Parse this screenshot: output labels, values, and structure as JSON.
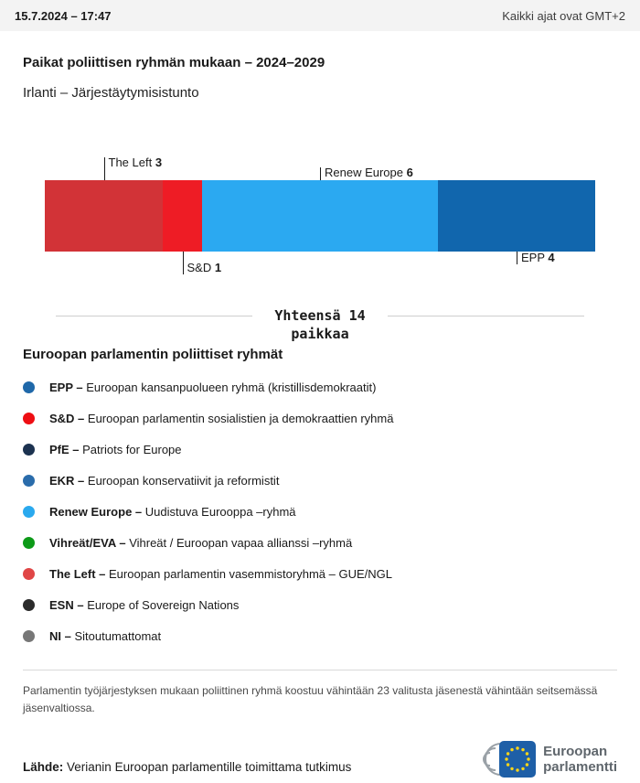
{
  "header": {
    "datetime": "15.7.2024 – 17:47",
    "timezone_note": "Kaikki ajat ovat GMT+2"
  },
  "title": "Paikat poliittisen ryhmän mukaan – 2024–2029",
  "subtitle": "Irlanti – Järjestäytymisistunto",
  "chart_data": {
    "type": "bar",
    "stacked": true,
    "title": "Paikat poliittisen ryhmän mukaan – 2024–2029",
    "region": "Irlanti – Järjestäytymisistunto",
    "total_seats": 14,
    "total_line1": "Yhteensä 14",
    "total_line2": "paikkaa",
    "categories": [
      "The Left",
      "S&D",
      "Renew Europe",
      "EPP"
    ],
    "values": [
      3,
      1,
      6,
      4
    ],
    "segments": [
      {
        "name": "The Left",
        "value": 3,
        "color": "#d23337",
        "label_side": "top",
        "tick": 25
      },
      {
        "name": "S&D",
        "value": 1,
        "color": "#ee1c25",
        "label_side": "bottom",
        "tick": 25
      },
      {
        "name": "Renew Europe",
        "value": 6,
        "color": "#2ba9f1",
        "label_side": "top",
        "tick": 14
      },
      {
        "name": "EPP",
        "value": 4,
        "color": "#1166ad",
        "label_side": "bottom",
        "tick": 14
      }
    ]
  },
  "legend": {
    "heading": "Euroopan parlamentin poliittiset ryhmät",
    "items": [
      {
        "label": "EPP –",
        "desc": "Euroopan kansanpuolueen ryhmä (kristillisdemokraatit)",
        "color": "#1f68a9"
      },
      {
        "label": "S&D –",
        "desc": "Euroopan parlamentin sosialistien ja demokraattien ryhmä",
        "color": "#ee0e13"
      },
      {
        "label": "PfE –",
        "desc": "Patriots for Europe",
        "color": "#1c3250"
      },
      {
        "label": "EKR –",
        "desc": "Euroopan konservatiivit ja reformistit",
        "color": "#2a6cab"
      },
      {
        "label": "Renew Europe –",
        "desc": "Uudistuva Eurooppa –ryhmä",
        "color": "#2aa9ee"
      },
      {
        "label": "Vihreät/EVA –",
        "desc": "Vihreät / Euroopan vapaa allianssi –ryhmä",
        "color": "#0c9a18"
      },
      {
        "label": "The Left –",
        "desc": "Euroopan parlamentin vasemmistoryhmä – GUE/NGL",
        "color": "#e04646"
      },
      {
        "label": "ESN –",
        "desc": "Europe of Sovereign Nations",
        "color": "#2b2b2b"
      },
      {
        "label": "NI –",
        "desc": "Sitoutumattomat",
        "color": "#777777"
      }
    ]
  },
  "footnote": "Parlamentin työjärjestyksen mukaan poliittinen ryhmä koostuu vähintään 23 valitusta jäsenestä vähintään seitsemässä jäsenvaltiossa.",
  "source": {
    "label": "Lähde:",
    "text": "Verianin Euroopan parlamentille toimittama tutkimus"
  },
  "logo": {
    "line1": "Euroopan",
    "line2": "parlamentti"
  }
}
